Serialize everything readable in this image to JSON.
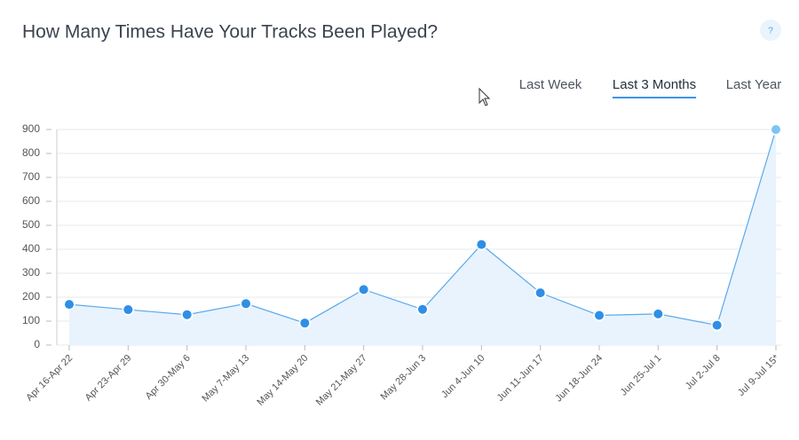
{
  "help": "?",
  "tabs": [
    "Last Week",
    "Last 3 Months",
    "Last Year"
  ],
  "active_tab": 1,
  "chart_data": {
    "type": "line",
    "title": "How Many Times Have Your Tracks Been Played?",
    "categories": [
      "Apr 16-Apr 22",
      "Apr 23-Apr 29",
      "Apr 30-May 6",
      "May 7-May 13",
      "May 14-May 20",
      "May 21-May 27",
      "May 28-Jun 3",
      "Jun 4-Jun 10",
      "Jun 11-Jun 17",
      "Jun 18-Jun 24",
      "Jun 25-Jul 1",
      "Jul 2-Jul 8",
      "Jul 9-Jul 15*"
    ],
    "series": [
      {
        "color": "#2e8fe6",
        "values": [
          170,
          148,
          127,
          173,
          92,
          232,
          149,
          420,
          218,
          124,
          130,
          83,
          900
        ]
      }
    ],
    "last_point_color": "#7cc4f4",
    "area": true,
    "ylim": [
      0,
      900
    ],
    "yticks": [
      0,
      100,
      200,
      300,
      400,
      500,
      600,
      700,
      800,
      900
    ],
    "grid": true
  }
}
